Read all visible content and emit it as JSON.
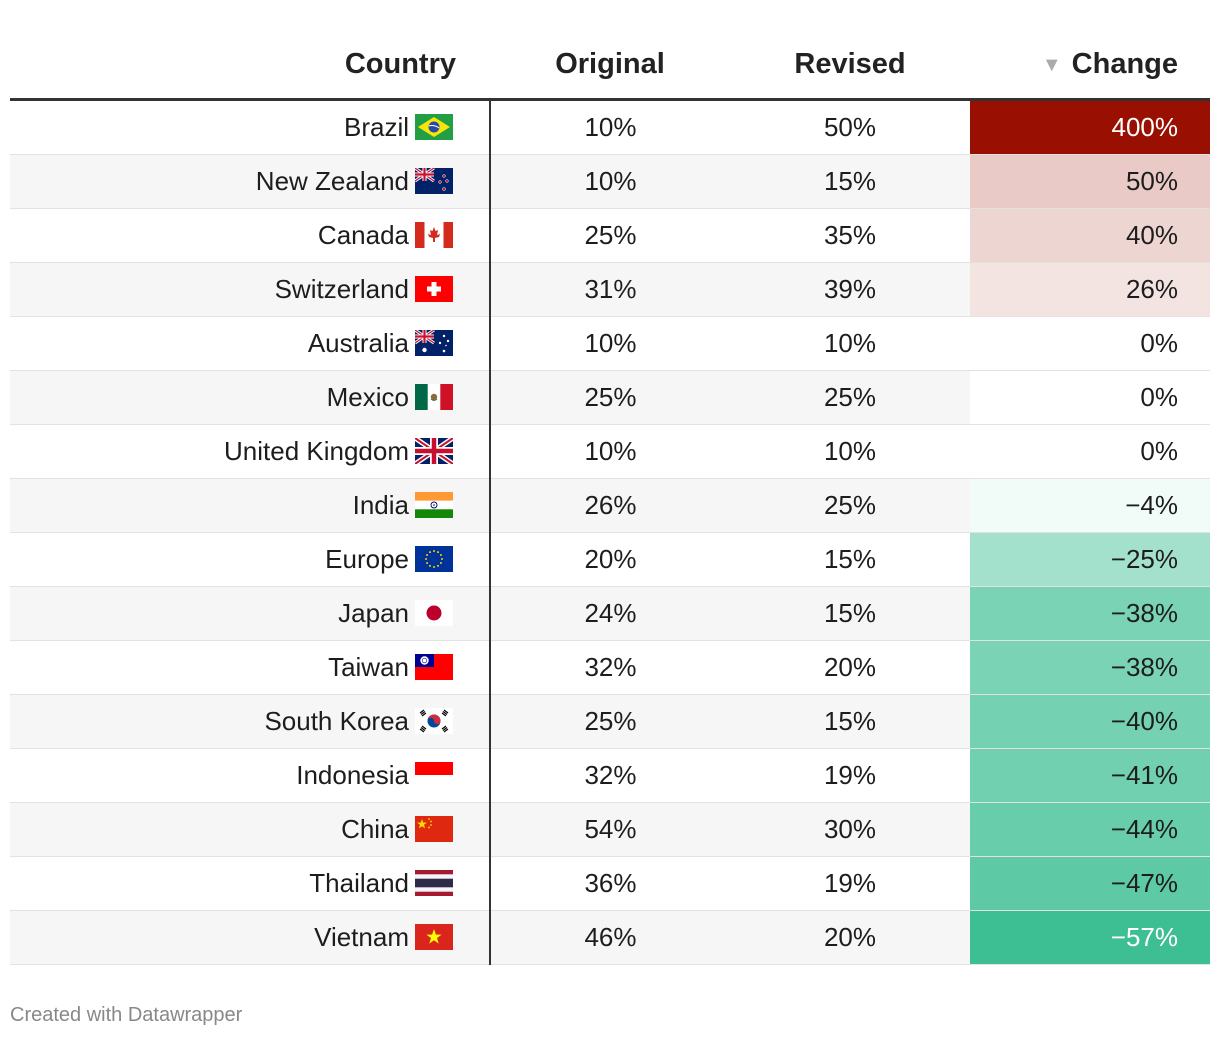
{
  "chart_data": {
    "type": "table",
    "columns": [
      "Country",
      "Original",
      "Revised",
      "Change"
    ],
    "sorted_by": "Change",
    "rows": [
      {
        "country": "Brazil",
        "original": "10%",
        "revised": "50%",
        "change": "400%",
        "change_value": 400,
        "flag": "brazil-flag-icon"
      },
      {
        "country": "New Zealand",
        "original": "10%",
        "revised": "15%",
        "change": "50%",
        "change_value": 50,
        "flag": "new-zealand-flag-icon"
      },
      {
        "country": "Canada",
        "original": "25%",
        "revised": "35%",
        "change": "40%",
        "change_value": 40,
        "flag": "canada-flag-icon"
      },
      {
        "country": "Switzerland",
        "original": "31%",
        "revised": "39%",
        "change": "26%",
        "change_value": 26,
        "flag": "switzerland-flag-icon"
      },
      {
        "country": "Australia",
        "original": "10%",
        "revised": "10%",
        "change": "0%",
        "change_value": 0,
        "flag": "australia-flag-icon"
      },
      {
        "country": "Mexico",
        "original": "25%",
        "revised": "25%",
        "change": "0%",
        "change_value": 0,
        "flag": "mexico-flag-icon"
      },
      {
        "country": "United Kingdom",
        "original": "10%",
        "revised": "10%",
        "change": "0%",
        "change_value": 0,
        "flag": "united-kingdom-flag-icon"
      },
      {
        "country": "India",
        "original": "26%",
        "revised": "25%",
        "change": "−4%",
        "change_value": -4,
        "flag": "india-flag-icon"
      },
      {
        "country": "Europe",
        "original": "20%",
        "revised": "15%",
        "change": "−25%",
        "change_value": -25,
        "flag": "europe-flag-icon"
      },
      {
        "country": "Japan",
        "original": "24%",
        "revised": "15%",
        "change": "−38%",
        "change_value": -38,
        "flag": "japan-flag-icon"
      },
      {
        "country": "Taiwan",
        "original": "32%",
        "revised": "20%",
        "change": "−38%",
        "change_value": -38,
        "flag": "taiwan-flag-icon"
      },
      {
        "country": "South Korea",
        "original": "25%",
        "revised": "15%",
        "change": "−40%",
        "change_value": -40,
        "flag": "south-korea-flag-icon"
      },
      {
        "country": "Indonesia",
        "original": "32%",
        "revised": "19%",
        "change": "−41%",
        "change_value": -41,
        "flag": "indonesia-flag-icon"
      },
      {
        "country": "China",
        "original": "54%",
        "revised": "30%",
        "change": "−44%",
        "change_value": -44,
        "flag": "china-flag-icon"
      },
      {
        "country": "Thailand",
        "original": "36%",
        "revised": "19%",
        "change": "−47%",
        "change_value": -47,
        "flag": "thailand-flag-icon"
      },
      {
        "country": "Vietnam",
        "original": "46%",
        "revised": "20%",
        "change": "−57%",
        "change_value": -57,
        "flag": "vietnam-flag-icon"
      }
    ],
    "colors": {
      "positive_max": "#990f02",
      "negative_max": "#3dbf93",
      "zero": "#ffffff"
    }
  },
  "credit": "Created with Datawrapper"
}
